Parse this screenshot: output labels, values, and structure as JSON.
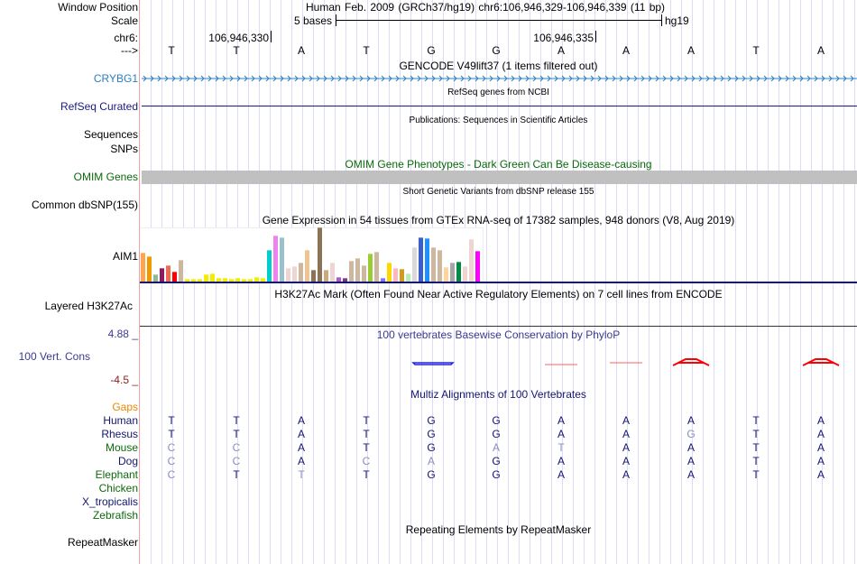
{
  "header": {
    "window_position_label": "Window Position",
    "window_position_value": "Human Feb. 2009 (GRCh37/hg19)   chr6:106,946,329-106,946,339 (11 bp)",
    "scale_label": "Scale",
    "scale_value": "5 bases",
    "scale_assembly": "hg19",
    "chrom_label": "chr6:",
    "coord_ticks": [
      "106,946,330",
      "106,946,335"
    ],
    "strand_label": "--->",
    "bases": [
      "T",
      "T",
      "A",
      "T",
      "G",
      "G",
      "A",
      "A",
      "A",
      "T",
      "A"
    ]
  },
  "tracks": {
    "gencode": {
      "title": "GENCODE V49lift37 (1 items filtered out)",
      "label": "CRYBG1"
    },
    "refseq": {
      "title": "RefSeq genes from NCBI",
      "label": "RefSeq Curated"
    },
    "publications": {
      "title": "Publications: Sequences in Scientific Articles",
      "labels": [
        "Sequences",
        "SNPs"
      ]
    },
    "omim": {
      "title": "OMIM Gene Phenotypes - Dark Green Can Be Disease-causing",
      "label": "OMIM Genes"
    },
    "dbsnp": {
      "title": "Short Genetic Variants from dbSNP release 155",
      "label": "Common dbSNP(155)"
    },
    "gtex": {
      "title": "Gene Expression in 54 tissues from GTEx RNA-seq of 17382 samples, 948 donors (V8, Aug 2019)",
      "label": "AIM1"
    },
    "h3k27ac": {
      "title": "H3K27Ac Mark (Often Found Near Active Regulatory Elements) on 7 cell lines from ENCODE",
      "label": "Layered H3K27Ac"
    },
    "phylop": {
      "title": "100 vertebrates Basewise Conservation by PhyloP",
      "label": "100 Vert. Cons",
      "ymax": "4.88 _",
      "ymin": "-4.5 _"
    },
    "multiz": {
      "title": "Multiz Alignments of 100 Vertebrates",
      "gaps_label": "Gaps",
      "species": [
        {
          "name": "Human",
          "color": "#141470",
          "seq": [
            "T",
            "T",
            "A",
            "T",
            "G",
            "G",
            "A",
            "A",
            "A",
            "T",
            "A"
          ],
          "dim": []
        },
        {
          "name": "Rhesus",
          "color": "#141470",
          "seq": [
            "T",
            "T",
            "A",
            "T",
            "G",
            "G",
            "A",
            "A",
            "G",
            "T",
            "A"
          ],
          "dim": [
            8
          ]
        },
        {
          "name": "Mouse",
          "color": "#0b6a0b",
          "seq": [
            "C",
            "C",
            "A",
            "T",
            "G",
            "A",
            "T",
            "A",
            "A",
            "T",
            "A"
          ],
          "dim": [
            0,
            1,
            5,
            6
          ]
        },
        {
          "name": "Dog",
          "color": "#141470",
          "seq": [
            "C",
            "C",
            "A",
            "C",
            "A",
            "G",
            "A",
            "A",
            "A",
            "T",
            "A"
          ],
          "dim": [
            0,
            1,
            3,
            4
          ]
        },
        {
          "name": "Elephant",
          "color": "#0b6a0b",
          "seq": [
            "C",
            "T",
            "T",
            "T",
            "G",
            "G",
            "A",
            "A",
            "A",
            "T",
            "A"
          ],
          "dim": [
            0,
            2
          ]
        },
        {
          "name": "Chicken",
          "color": "#0b6a0b",
          "seq": [],
          "dim": []
        },
        {
          "name": "X_tropicalis",
          "color": "#141470",
          "seq": [],
          "dim": []
        },
        {
          "name": "Zebrafish",
          "color": "#0b6a0b",
          "seq": [],
          "dim": []
        }
      ]
    },
    "repeatmasker": {
      "title": "Repeating Elements by RepeatMasker",
      "label": "RepeatMasker"
    }
  },
  "colors": {
    "gencode": "#2a7fc0",
    "refseq": "#1a1a80",
    "omim": "#0b6a0b",
    "phylop": "#3a3a90",
    "gaps": "#ee8800"
  },
  "chart_data": {
    "type": "bar",
    "title": "Gene Expression in 54 tissues from GTEx RNA-seq of 17382 samples, 948 donors (V8, Aug 2019)",
    "note": "relative heights, unlabeled axis",
    "values": [
      95,
      83,
      23,
      44,
      53,
      32,
      71,
      8,
      8,
      8,
      23,
      26,
      11,
      11,
      8,
      11,
      8,
      8,
      14,
      11,
      104,
      152,
      146,
      44,
      50,
      62,
      104,
      38,
      179,
      38,
      62,
      14,
      11,
      68,
      77,
      53,
      92,
      98,
      11,
      62,
      44,
      41,
      26,
      113,
      146,
      143,
      113,
      104,
      47,
      62,
      65,
      50,
      140,
      101
    ],
    "colors": [
      "#FFA54F",
      "#EE9A00",
      "#8FBC8F",
      "#8B1C62",
      "#EE6A50",
      "#FF0000",
      "#CDB79E",
      "#EEEE00",
      "#EEEE00",
      "#EEEE00",
      "#EEEE00",
      "#EEEE00",
      "#EEEE00",
      "#EEEE00",
      "#EEEE00",
      "#EEEE00",
      "#EEEE00",
      "#EEEE00",
      "#EEEE00",
      "#EEEE00",
      "#00CED1",
      "#EE82EE",
      "#9AC0CD",
      "#EED5D2",
      "#EED5D2",
      "#CDB79E",
      "#EEC591",
      "#8B7355",
      "#8B7355",
      "#CDAA7D",
      "#EED5D2",
      "#B452CD",
      "#7A378B",
      "#CDB79E",
      "#CDB79E",
      "#CDB79E",
      "#9ACD32",
      "#CDB79E",
      "#7777FF",
      "#FFD700",
      "#FFB6C1",
      "#CD9B1D",
      "#B4EEB4",
      "#D9D9D9",
      "#3A5FCD",
      "#1E90FF",
      "#CDB79E",
      "#CDB79E",
      "#FFD39B",
      "#A6A6A6",
      "#008B45",
      "#EED5D2",
      "#EED5D2",
      "#FF00FF"
    ],
    "ylim": [
      0,
      180
    ]
  }
}
